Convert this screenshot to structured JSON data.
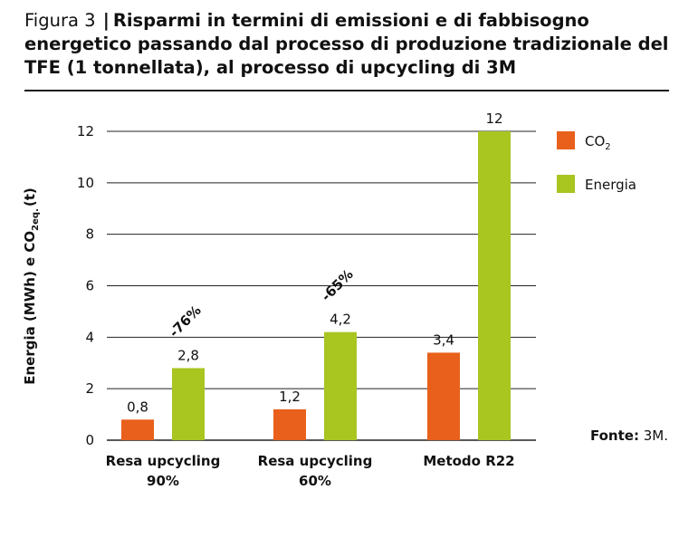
{
  "figure": {
    "label": "Figura 3",
    "separator": "|",
    "title": "Risparmi in termini di emissioni e di fabbisogno energetico passando dal processo di produzione tradizionale del TFE (1 tonnellata), al processo di upcycling di 3M"
  },
  "source": {
    "label": "Fonte:",
    "value": "3M."
  },
  "colors": {
    "co2": "#e8601c",
    "energy": "#a8c520",
    "grid": "#222222"
  },
  "chart_data": {
    "type": "bar",
    "categories": [
      "Resa upcycling 90%",
      "Resa upcycling 60%",
      "Metodo R22"
    ],
    "category_lines": [
      [
        "Resa upcycling",
        "90%"
      ],
      [
        "Resa upcycling",
        "60%"
      ],
      [
        "Metodo R22"
      ]
    ],
    "series": [
      {
        "name": "CO2",
        "legend_main": "CO",
        "legend_sub": "2",
        "values": [
          0.8,
          1.2,
          3.4
        ],
        "value_labels": [
          "0,8",
          "1,2",
          "3,4"
        ]
      },
      {
        "name": "Energia",
        "legend_main": "Energia",
        "legend_sub": "",
        "values": [
          2.8,
          4.2,
          12
        ],
        "value_labels": [
          "2,8",
          "4,2",
          "12"
        ]
      }
    ],
    "ylabel_parts": [
      "Energia (MWh) e CO",
      "2eq.",
      "(t)"
    ],
    "ylim": [
      0,
      12
    ],
    "yticks": [
      0,
      2,
      4,
      6,
      8,
      10,
      12
    ],
    "grid": true,
    "legend_position": "right",
    "annotations": [
      {
        "text": "-76%",
        "category": 0
      },
      {
        "text": "-65%",
        "category": 1
      }
    ]
  }
}
